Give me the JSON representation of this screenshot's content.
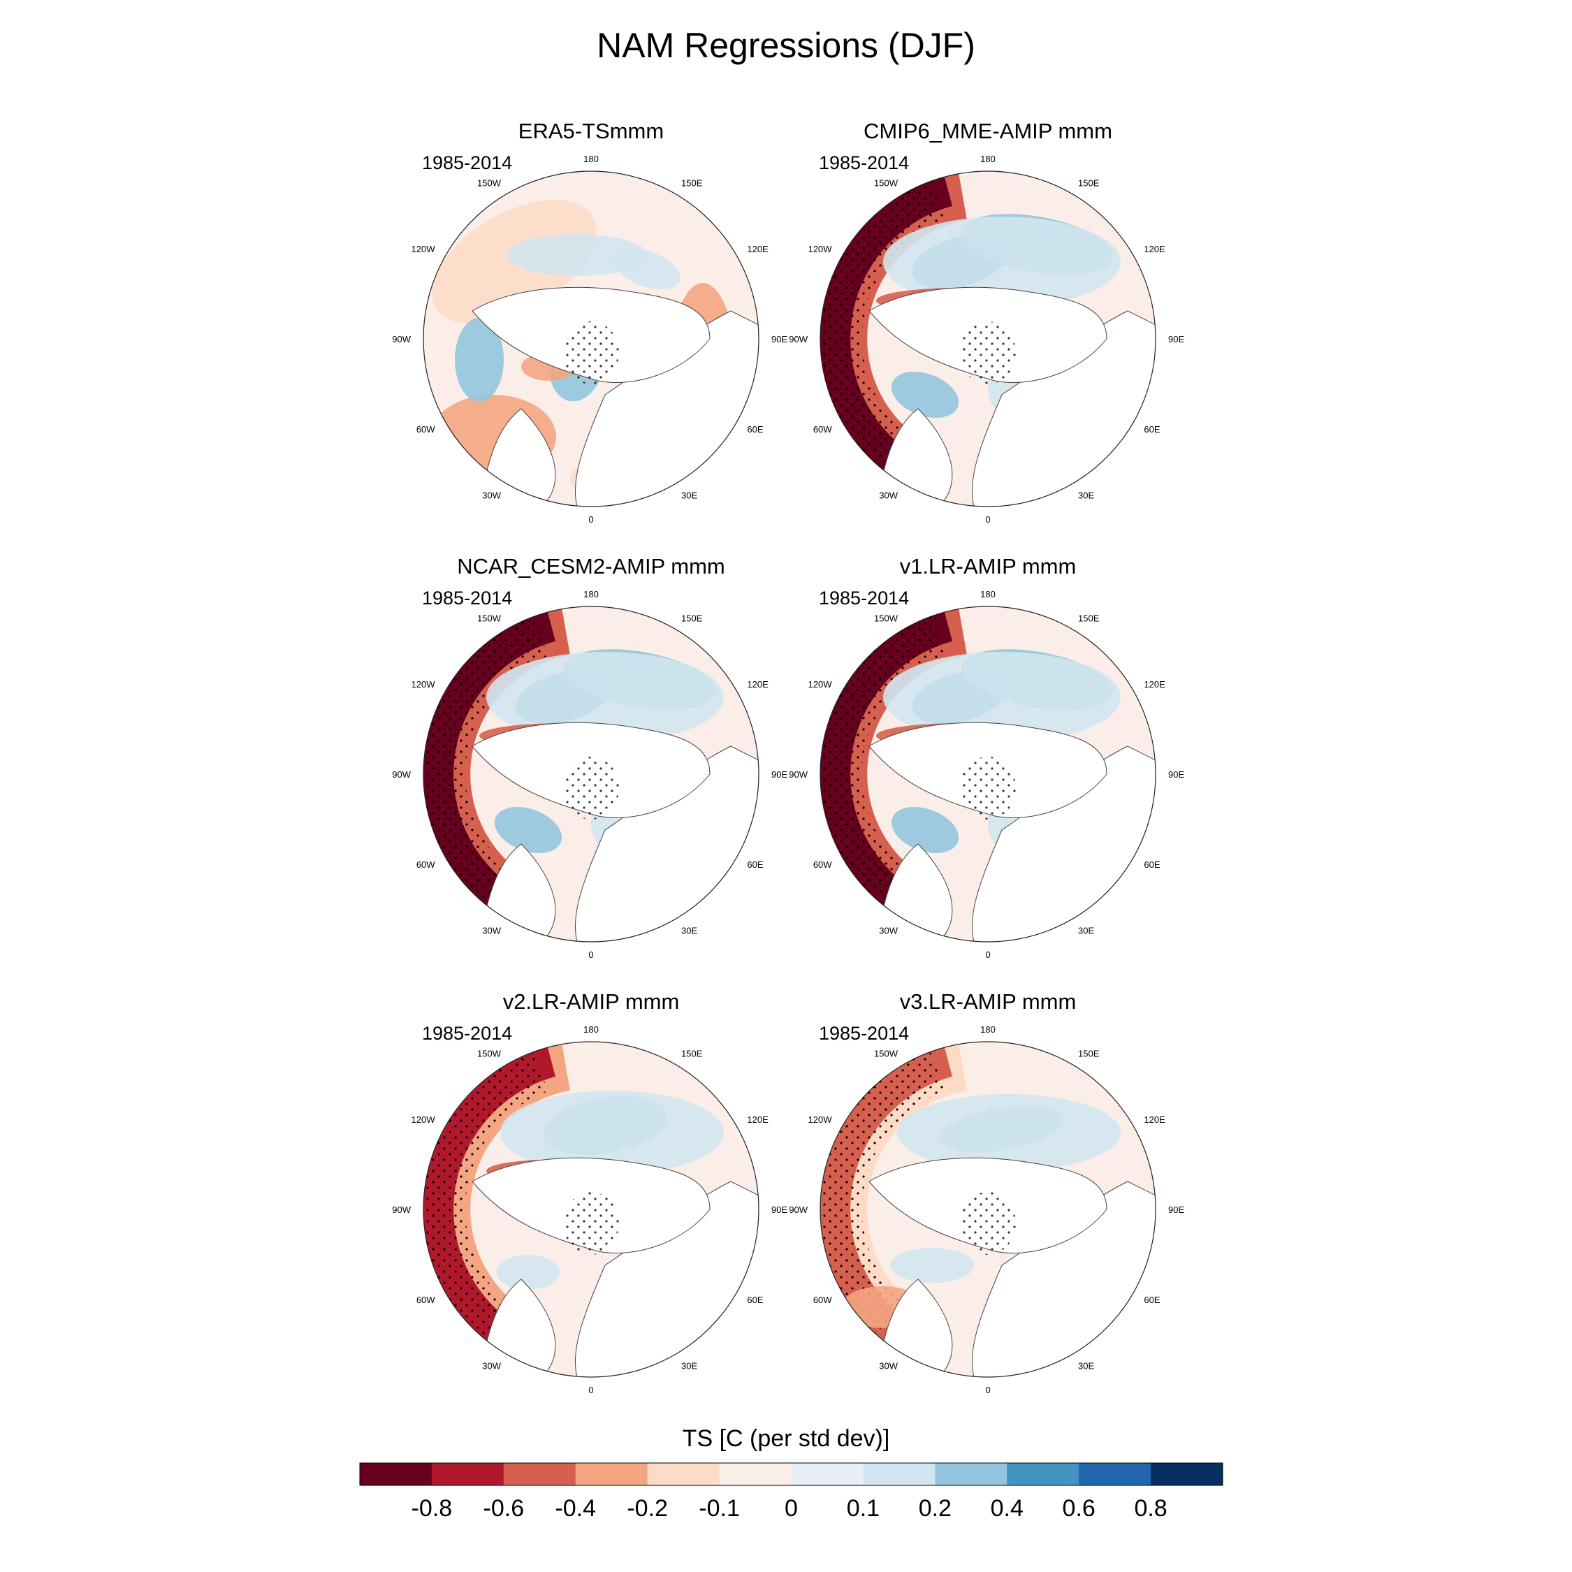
{
  "figure": {
    "title": "NAM Regressions (DJF)",
    "period_label": "1985-2014"
  },
  "panels": [
    {
      "title": "ERA5-TSmmm",
      "pattern": "era5"
    },
    {
      "title": "CMIP6_MME-AMIP  mmm",
      "pattern": "strong"
    },
    {
      "title": "NCAR_CESM2-AMIP  mmm",
      "pattern": "strong"
    },
    {
      "title": "v1.LR-AMIP  mmm",
      "pattern": "strong"
    },
    {
      "title": "v2.LR-AMIP  mmm",
      "pattern": "medium"
    },
    {
      "title": "v3.LR-AMIP  mmm",
      "pattern": "weak"
    }
  ],
  "longitude_labels": [
    "180",
    "150E",
    "120E",
    "90E",
    "60E",
    "30E",
    "0",
    "30W",
    "60W",
    "90W",
    "120W",
    "150W"
  ],
  "colorbar": {
    "title": "TS [C (per std dev)]",
    "tick_labels": [
      "-0.8",
      "-0.6",
      "-0.4",
      "-0.2",
      "-0.1",
      "0",
      "0.1",
      "0.2",
      "0.4",
      "0.6",
      "0.8"
    ],
    "colors": [
      "#67001f",
      "#b2182b",
      "#d6604d",
      "#f4a582",
      "#fddbc7",
      "#fbeee8",
      "#e8eef5",
      "#d1e5f0",
      "#92c5de",
      "#4393c3",
      "#2166ac",
      "#053061"
    ]
  }
}
